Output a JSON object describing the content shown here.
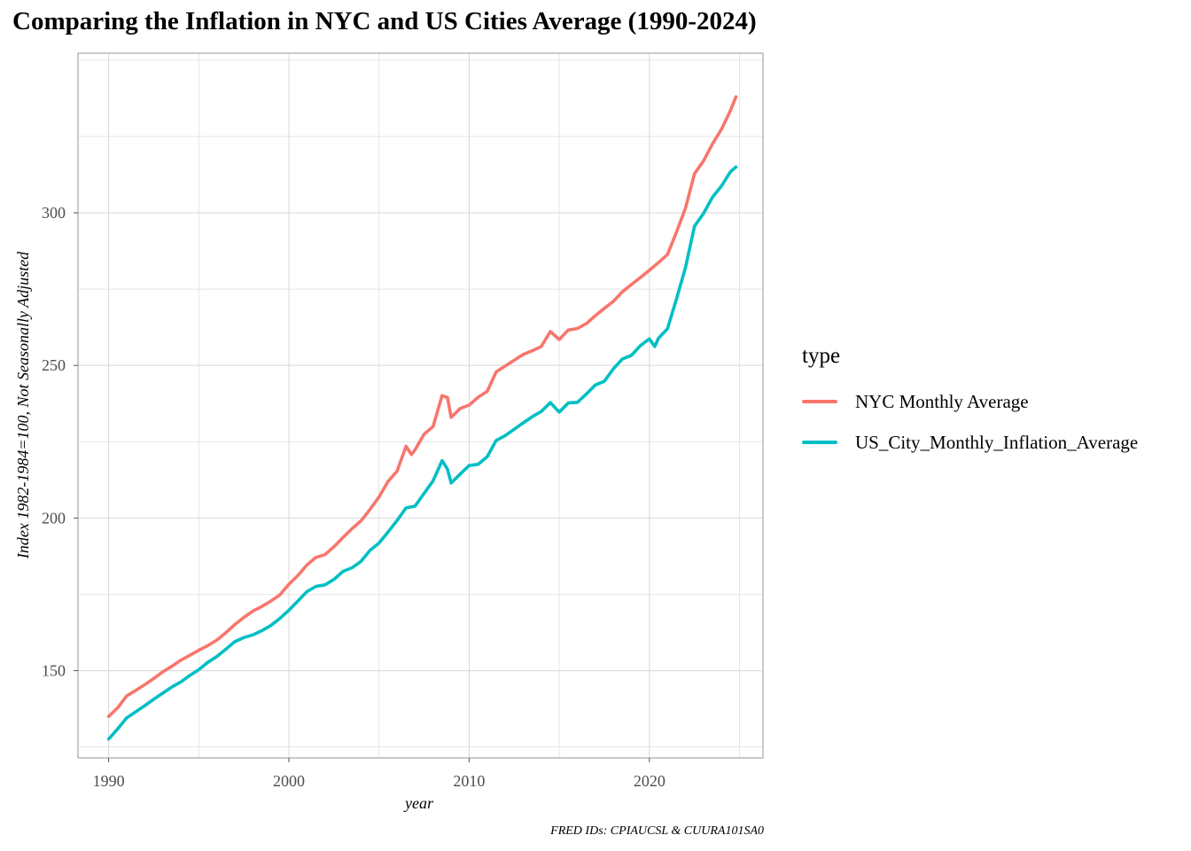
{
  "chart_data": {
    "type": "line",
    "title": "Comparing the Inflation in NYC and US Cities Average (1990-2024)",
    "xlabel": "year",
    "ylabel": "Index 1982-1984=100, Not Seasonally Adjusted",
    "caption": "FRED IDs: CPIAUCSL & CUURA101SA0",
    "xlim": [
      1988.3,
      2026.3
    ],
    "ylim": [
      121.4,
      352.3
    ],
    "x_ticks": [
      1990,
      2000,
      2010,
      2020
    ],
    "y_ticks": [
      150,
      200,
      250,
      300
    ],
    "grid": true,
    "legend_title": "type",
    "legend_position": "right",
    "series": [
      {
        "name": "NYC Monthly Average",
        "color": "#F8766D",
        "points": [
          [
            1990.0,
            135.0
          ],
          [
            1990.5,
            137.8
          ],
          [
            1991.0,
            141.7
          ],
          [
            1991.5,
            143.5
          ],
          [
            1992.0,
            145.4
          ],
          [
            1992.5,
            147.4
          ],
          [
            1993.0,
            149.6
          ],
          [
            1993.5,
            151.4
          ],
          [
            1994.0,
            153.4
          ],
          [
            1994.5,
            155.0
          ],
          [
            1995.0,
            156.7
          ],
          [
            1995.5,
            158.2
          ],
          [
            1996.0,
            160.0
          ],
          [
            1996.5,
            162.4
          ],
          [
            1997.0,
            165.1
          ],
          [
            1997.5,
            167.4
          ],
          [
            1998.0,
            169.5
          ],
          [
            1998.5,
            171.0
          ],
          [
            1999.0,
            172.8
          ],
          [
            1999.5,
            174.8
          ],
          [
            2000.0,
            178.3
          ],
          [
            2000.5,
            181.2
          ],
          [
            2001.0,
            184.6
          ],
          [
            2001.5,
            187.1
          ],
          [
            2002.0,
            188.0
          ],
          [
            2002.5,
            190.6
          ],
          [
            2003.0,
            193.6
          ],
          [
            2003.5,
            196.5
          ],
          [
            2004.0,
            199.1
          ],
          [
            2004.5,
            202.8
          ],
          [
            2005.0,
            206.9
          ],
          [
            2005.5,
            212.0
          ],
          [
            2006.0,
            215.4
          ],
          [
            2006.5,
            223.5
          ],
          [
            2006.8,
            220.8
          ],
          [
            2007.0,
            222.4
          ],
          [
            2007.5,
            227.5
          ],
          [
            2008.0,
            230.0
          ],
          [
            2008.5,
            240.1
          ],
          [
            2008.8,
            239.5
          ],
          [
            2009.0,
            233.0
          ],
          [
            2009.5,
            235.9
          ],
          [
            2010.0,
            237.0
          ],
          [
            2010.5,
            239.6
          ],
          [
            2011.0,
            241.5
          ],
          [
            2011.5,
            247.9
          ],
          [
            2012.0,
            249.8
          ],
          [
            2012.5,
            251.7
          ],
          [
            2013.0,
            253.6
          ],
          [
            2013.5,
            254.8
          ],
          [
            2014.0,
            256.2
          ],
          [
            2014.5,
            261.1
          ],
          [
            2015.0,
            258.5
          ],
          [
            2015.5,
            261.6
          ],
          [
            2016.0,
            262.1
          ],
          [
            2016.5,
            263.7
          ],
          [
            2017.0,
            266.3
          ],
          [
            2017.5,
            268.7
          ],
          [
            2018.0,
            271.0
          ],
          [
            2018.5,
            274.1
          ],
          [
            2019.0,
            276.5
          ],
          [
            2019.5,
            278.8
          ],
          [
            2020.0,
            281.2
          ],
          [
            2020.5,
            283.7
          ],
          [
            2021.0,
            286.3
          ],
          [
            2021.5,
            293.7
          ],
          [
            2022.0,
            301.5
          ],
          [
            2022.5,
            312.8
          ],
          [
            2023.0,
            317.0
          ],
          [
            2023.5,
            322.6
          ],
          [
            2024.0,
            327.4
          ],
          [
            2024.5,
            333.6
          ],
          [
            2024.8,
            338.0
          ]
        ]
      },
      {
        "name": "US_City_Monthly_Inflation_Average",
        "color": "#00BFC4",
        "points": [
          [
            1990.0,
            127.6
          ],
          [
            1990.5,
            130.9
          ],
          [
            1991.0,
            134.5
          ],
          [
            1991.5,
            136.5
          ],
          [
            1992.0,
            138.5
          ],
          [
            1992.5,
            140.6
          ],
          [
            1993.0,
            142.6
          ],
          [
            1993.5,
            144.6
          ],
          [
            1994.0,
            146.3
          ],
          [
            1994.5,
            148.4
          ],
          [
            1995.0,
            150.3
          ],
          [
            1995.5,
            152.7
          ],
          [
            1996.0,
            154.6
          ],
          [
            1996.5,
            157.0
          ],
          [
            1997.0,
            159.5
          ],
          [
            1997.5,
            160.8
          ],
          [
            1998.0,
            161.7
          ],
          [
            1998.5,
            163.1
          ],
          [
            1999.0,
            164.8
          ],
          [
            1999.5,
            167.1
          ],
          [
            2000.0,
            169.8
          ],
          [
            2000.5,
            172.8
          ],
          [
            2001.0,
            175.9
          ],
          [
            2001.5,
            177.6
          ],
          [
            2002.0,
            178.1
          ],
          [
            2002.5,
            179.9
          ],
          [
            2003.0,
            182.5
          ],
          [
            2003.5,
            183.7
          ],
          [
            2004.0,
            185.8
          ],
          [
            2004.5,
            189.4
          ],
          [
            2005.0,
            191.8
          ],
          [
            2005.5,
            195.4
          ],
          [
            2006.0,
            199.2
          ],
          [
            2006.5,
            203.3
          ],
          [
            2007.0,
            203.9
          ],
          [
            2007.5,
            208.1
          ],
          [
            2008.0,
            212.2
          ],
          [
            2008.5,
            218.8
          ],
          [
            2008.8,
            216.0
          ],
          [
            2009.0,
            211.5
          ],
          [
            2009.5,
            214.4
          ],
          [
            2010.0,
            217.2
          ],
          [
            2010.5,
            217.6
          ],
          [
            2011.0,
            220.1
          ],
          [
            2011.5,
            225.4
          ],
          [
            2012.0,
            227.0
          ],
          [
            2012.5,
            229.1
          ],
          [
            2013.0,
            231.2
          ],
          [
            2013.5,
            233.2
          ],
          [
            2014.0,
            234.9
          ],
          [
            2014.5,
            237.8
          ],
          [
            2015.0,
            234.7
          ],
          [
            2015.5,
            237.7
          ],
          [
            2016.0,
            237.9
          ],
          [
            2016.5,
            240.6
          ],
          [
            2017.0,
            243.6
          ],
          [
            2017.5,
            244.8
          ],
          [
            2018.0,
            248.9
          ],
          [
            2018.5,
            252.1
          ],
          [
            2019.0,
            253.3
          ],
          [
            2019.5,
            256.5
          ],
          [
            2020.0,
            258.7
          ],
          [
            2020.3,
            256.2
          ],
          [
            2020.5,
            258.9
          ],
          [
            2021.0,
            262.0
          ],
          [
            2021.5,
            271.8
          ],
          [
            2022.0,
            282.0
          ],
          [
            2022.5,
            295.6
          ],
          [
            2023.0,
            299.8
          ],
          [
            2023.5,
            305.1
          ],
          [
            2024.0,
            308.8
          ],
          [
            2024.5,
            313.5
          ],
          [
            2024.8,
            315.0
          ]
        ]
      }
    ]
  }
}
